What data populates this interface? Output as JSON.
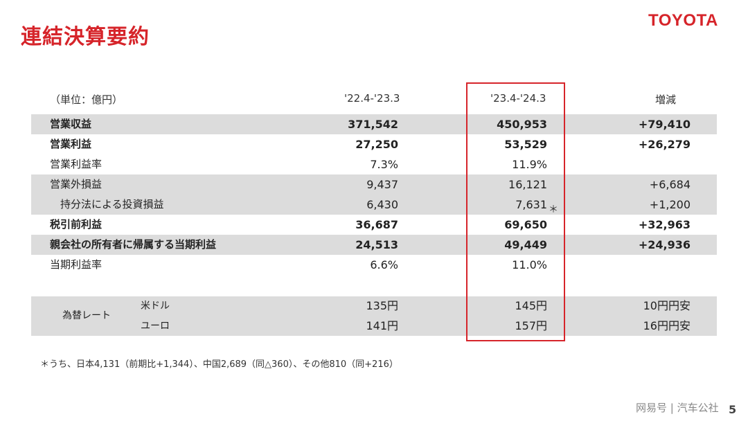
{
  "title": "連結決算要約",
  "logo": "TOYOTA",
  "header": {
    "unit": "（単位：億円）",
    "col1": "'22.4-'23.3",
    "col2": "'23.4-'24.3",
    "col3": "増減"
  },
  "rows": [
    {
      "label": "営業収益",
      "v1": "371,542",
      "v2": "450,953",
      "v3": "+79,410"
    },
    {
      "label": "営業利益",
      "v1": "27,250",
      "v2": "53,529",
      "v3": "+26,279"
    },
    {
      "label": "営業利益率",
      "v1": "7.3%",
      "v2": "11.9%",
      "v3": ""
    },
    {
      "label": "営業外損益",
      "v1": "9,437",
      "v2": "16,121",
      "v3": "+6,684"
    },
    {
      "label": "持分法による投資損益",
      "v1": "6,430",
      "v2": "7,631",
      "v3": "+1,200"
    },
    {
      "label": "税引前利益",
      "v1": "36,687",
      "v2": "69,650",
      "v3": "+32,963"
    },
    {
      "label": "親会社の所有者に帰属する当期利益",
      "v1": "24,513",
      "v2": "49,449",
      "v3": "+24,936"
    },
    {
      "label": "当期利益率",
      "v1": "6.6%",
      "v2": "11.0%",
      "v3": ""
    }
  ],
  "star_mark": "＊",
  "fx": {
    "label": "為替レート",
    "rows": [
      {
        "label": "米ドル",
        "v1": "135円",
        "v2": "145円",
        "v3": "10円円安"
      },
      {
        "label": "ユーロ",
        "v1": "141円",
        "v2": "157円",
        "v3": "16円円安"
      }
    ]
  },
  "footnote": "＊うち、日本4,131（前期比+1,344）、中国2,689（同△360）、その他810（同+216）",
  "watermark": "网易号 | 汽车公社",
  "page_number": "5",
  "colors": {
    "accent": "#d6242a",
    "shade": "#dcdcdc"
  }
}
